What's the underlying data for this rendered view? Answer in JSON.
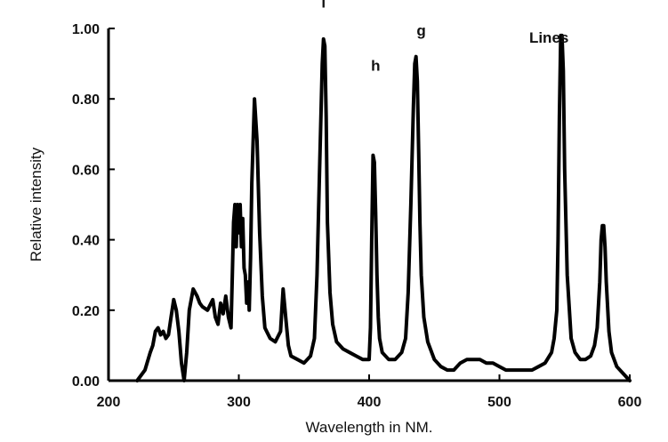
{
  "chart_data": {
    "type": "line",
    "title": "",
    "xlabel": "Wavelength in NM.",
    "ylabel": "Relative intensity",
    "xlim": [
      200,
      600
    ],
    "ylim": [
      0.0,
      1.0
    ],
    "grid": false,
    "legend": "none",
    "line_color": "#000000",
    "x_ticks": [
      "200",
      "300",
      "400",
      "500",
      "600"
    ],
    "y_ticks": [
      "0.00",
      "0.20",
      "0.40",
      "0.60",
      "0.80",
      "1.00"
    ],
    "annotations": [
      {
        "text": "i",
        "x": 365,
        "y": 1.06
      },
      {
        "text": "h",
        "x": 405,
        "y": 0.88
      },
      {
        "text": "g",
        "x": 440,
        "y": 0.98
      },
      {
        "text": "Lines",
        "x": 538,
        "y": 0.96
      }
    ],
    "series": [
      {
        "x": [
          222,
          228,
          232,
          234,
          236,
          238,
          240,
          242,
          244,
          246,
          248,
          250,
          252,
          254,
          256,
          258,
          260,
          262,
          265,
          268,
          270,
          272,
          276,
          280,
          282,
          284,
          286,
          288,
          290,
          292,
          294,
          295,
          296,
          297,
          298,
          299,
          300,
          301,
          302,
          303,
          304,
          305,
          306,
          307,
          308,
          309,
          310,
          312,
          314,
          316,
          318,
          320,
          324,
          328,
          332,
          334,
          336,
          338,
          340,
          345,
          350,
          355,
          358,
          360,
          362,
          364,
          365,
          366,
          367,
          368,
          370,
          372,
          375,
          380,
          385,
          390,
          395,
          400,
          401,
          402,
          403,
          404,
          405,
          406,
          407,
          408,
          410,
          415,
          420,
          425,
          428,
          430,
          432,
          434,
          435,
          436,
          437,
          438,
          439,
          440,
          442,
          445,
          450,
          455,
          460,
          465,
          470,
          475,
          480,
          485,
          490,
          495,
          500,
          505,
          510,
          515,
          520,
          525,
          530,
          535,
          540,
          542,
          544,
          545,
          546,
          547,
          548,
          549,
          550,
          552,
          555,
          558,
          562,
          566,
          570,
          573,
          575,
          577,
          578,
          579,
          580,
          581,
          582,
          584,
          586,
          590,
          595,
          600
        ],
        "y": [
          0.0,
          0.03,
          0.08,
          0.1,
          0.14,
          0.15,
          0.13,
          0.14,
          0.12,
          0.13,
          0.18,
          0.23,
          0.2,
          0.14,
          0.05,
          0.0,
          0.08,
          0.2,
          0.26,
          0.24,
          0.22,
          0.21,
          0.2,
          0.23,
          0.18,
          0.16,
          0.22,
          0.19,
          0.24,
          0.18,
          0.15,
          0.3,
          0.45,
          0.5,
          0.38,
          0.5,
          0.42,
          0.5,
          0.38,
          0.46,
          0.32,
          0.3,
          0.22,
          0.28,
          0.2,
          0.35,
          0.56,
          0.8,
          0.68,
          0.42,
          0.24,
          0.15,
          0.12,
          0.11,
          0.14,
          0.26,
          0.18,
          0.1,
          0.07,
          0.06,
          0.05,
          0.07,
          0.12,
          0.3,
          0.6,
          0.9,
          0.97,
          0.95,
          0.75,
          0.45,
          0.25,
          0.16,
          0.11,
          0.09,
          0.08,
          0.07,
          0.06,
          0.06,
          0.15,
          0.4,
          0.64,
          0.62,
          0.48,
          0.3,
          0.18,
          0.12,
          0.08,
          0.06,
          0.06,
          0.08,
          0.12,
          0.25,
          0.5,
          0.78,
          0.9,
          0.92,
          0.85,
          0.65,
          0.45,
          0.3,
          0.18,
          0.11,
          0.06,
          0.04,
          0.03,
          0.03,
          0.05,
          0.06,
          0.06,
          0.06,
          0.05,
          0.05,
          0.04,
          0.03,
          0.03,
          0.03,
          0.03,
          0.03,
          0.04,
          0.05,
          0.08,
          0.12,
          0.2,
          0.4,
          0.75,
          0.98,
          0.98,
          0.88,
          0.6,
          0.3,
          0.12,
          0.08,
          0.06,
          0.06,
          0.07,
          0.1,
          0.15,
          0.28,
          0.4,
          0.44,
          0.44,
          0.38,
          0.28,
          0.14,
          0.08,
          0.04,
          0.02,
          0.0
        ]
      }
    ]
  }
}
